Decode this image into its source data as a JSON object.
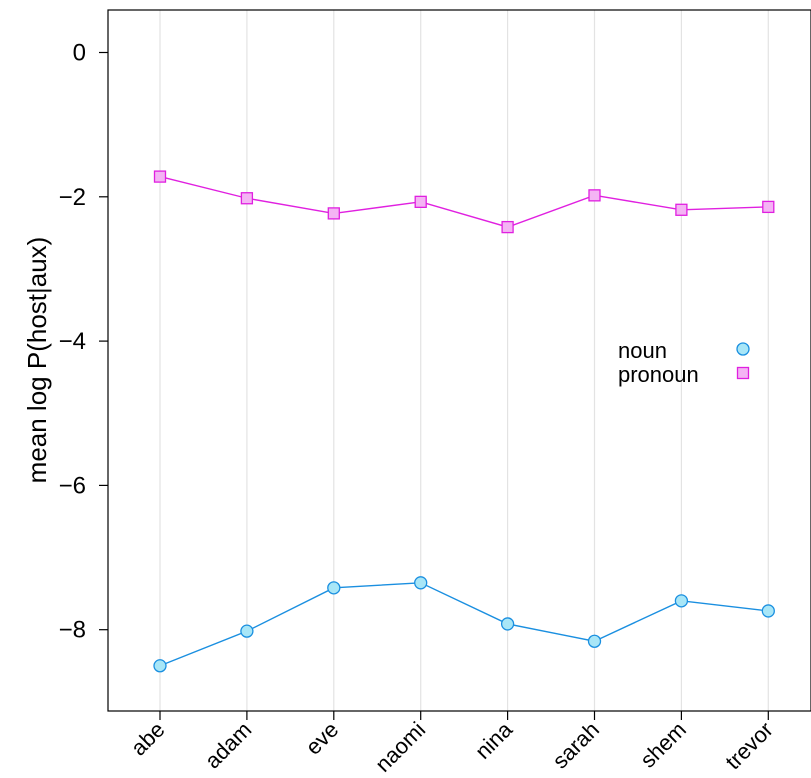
{
  "chart_data": {
    "type": "line",
    "categories": [
      "abe",
      "adam",
      "eve",
      "naomi",
      "nina",
      "sarah",
      "shem",
      "trevor"
    ],
    "ylabel": "mean log P(host|aux)",
    "ylim": [
      -9.0,
      0.6
    ],
    "yticks": [
      0,
      -2,
      -4,
      -6,
      -8
    ],
    "ytick_labels": [
      "0",
      "−2",
      "−4",
      "−6",
      "−8"
    ],
    "grid": "vertical",
    "legend_position": "right",
    "series": [
      {
        "name": "noun",
        "marker": "circle",
        "color": "#1a8fe0",
        "fill": "#a8e6f7",
        "values": [
          -8.5,
          -8.02,
          -7.42,
          -7.35,
          -7.92,
          -8.16,
          -7.6,
          -7.74
        ]
      },
      {
        "name": "pronoun",
        "marker": "square",
        "color": "#e020e0",
        "fill": "#f4b4f4",
        "values": [
          -1.72,
          -2.02,
          -2.23,
          -2.07,
          -2.42,
          -1.98,
          -2.18,
          -2.14
        ]
      }
    ]
  }
}
